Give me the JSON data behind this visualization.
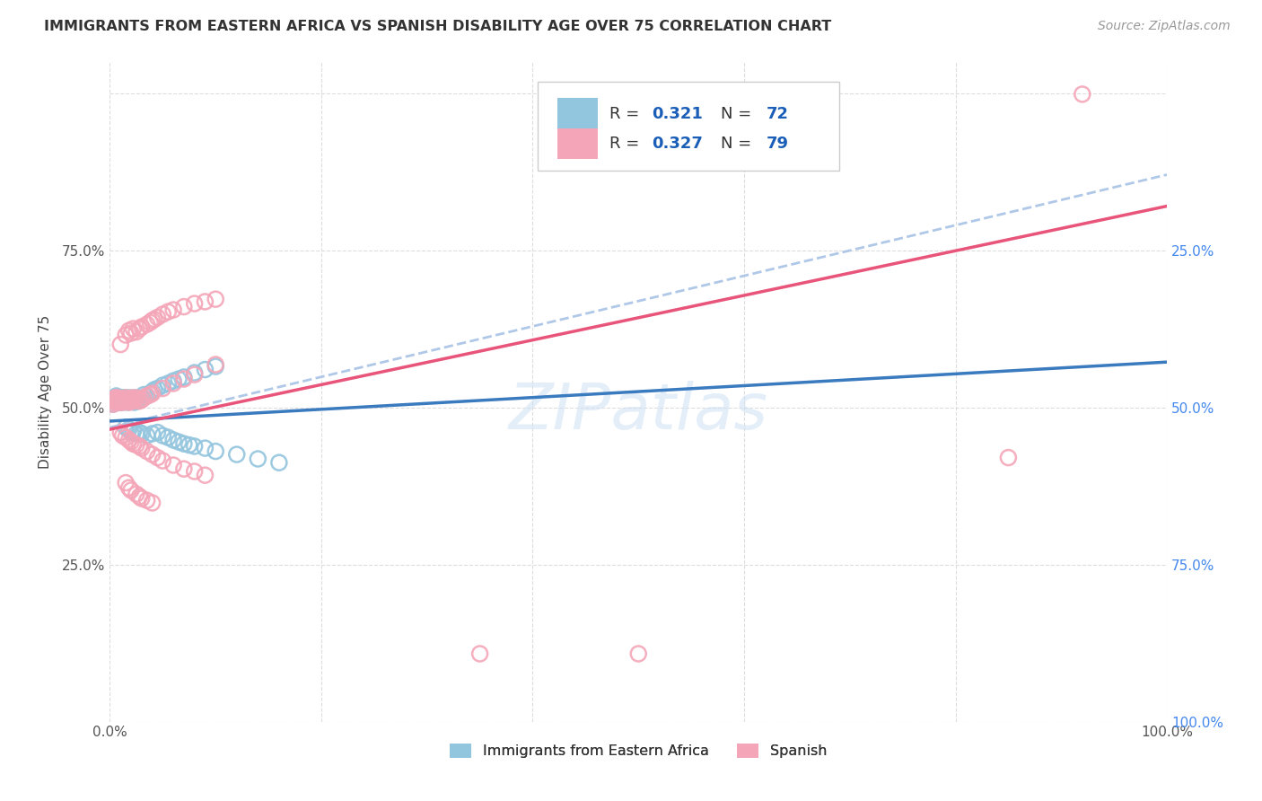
{
  "title": "IMMIGRANTS FROM EASTERN AFRICA VS SPANISH DISABILITY AGE OVER 75 CORRELATION CHART",
  "source": "Source: ZipAtlas.com",
  "ylabel": "Disability Age Over 75",
  "legend_label1": "Immigrants from Eastern Africa",
  "legend_label2": "Spanish",
  "r1": 0.321,
  "n1": 72,
  "r2": 0.327,
  "n2": 79,
  "blue_color": "#92c5de",
  "pink_color": "#f4a6b8",
  "blue_line_color": "#3a7abf",
  "pink_line_color": "#e8547a",
  "dashed_line_color": "#b0c8e8",
  "right_axis_color": "#4488ee",
  "title_color": "#333333",
  "source_color": "#999999",
  "legend_text_color": "#1a5eb8",
  "blue_scatter_x": [
    0.003,
    0.004,
    0.005,
    0.005,
    0.006,
    0.006,
    0.007,
    0.007,
    0.008,
    0.008,
    0.009,
    0.009,
    0.01,
    0.01,
    0.011,
    0.011,
    0.012,
    0.012,
    0.013,
    0.013,
    0.014,
    0.015,
    0.015,
    0.016,
    0.017,
    0.018,
    0.019,
    0.02,
    0.021,
    0.022,
    0.023,
    0.024,
    0.025,
    0.026,
    0.028,
    0.03,
    0.032,
    0.035,
    0.038,
    0.04,
    0.042,
    0.045,
    0.05,
    0.055,
    0.06,
    0.065,
    0.07,
    0.08,
    0.09,
    0.1,
    0.015,
    0.018,
    0.02,
    0.022,
    0.025,
    0.028,
    0.03,
    0.035,
    0.04,
    0.045,
    0.05,
    0.055,
    0.06,
    0.065,
    0.07,
    0.075,
    0.08,
    0.09,
    0.1,
    0.12,
    0.14,
    0.16
  ],
  "blue_scatter_y": [
    0.505,
    0.51,
    0.508,
    0.515,
    0.512,
    0.518,
    0.51,
    0.515,
    0.508,
    0.512,
    0.51,
    0.515,
    0.508,
    0.512,
    0.51,
    0.515,
    0.508,
    0.512,
    0.51,
    0.515,
    0.512,
    0.51,
    0.515,
    0.512,
    0.508,
    0.515,
    0.51,
    0.512,
    0.51,
    0.515,
    0.508,
    0.512,
    0.515,
    0.51,
    0.512,
    0.515,
    0.52,
    0.518,
    0.522,
    0.525,
    0.528,
    0.53,
    0.535,
    0.538,
    0.542,
    0.545,
    0.548,
    0.555,
    0.56,
    0.565,
    0.468,
    0.465,
    0.46,
    0.462,
    0.458,
    0.46,
    0.458,
    0.455,
    0.458,
    0.46,
    0.455,
    0.452,
    0.448,
    0.445,
    0.442,
    0.44,
    0.438,
    0.435,
    0.43,
    0.425,
    0.418,
    0.412
  ],
  "pink_scatter_x": [
    0.003,
    0.004,
    0.005,
    0.005,
    0.006,
    0.006,
    0.007,
    0.007,
    0.008,
    0.008,
    0.009,
    0.01,
    0.01,
    0.011,
    0.012,
    0.013,
    0.014,
    0.015,
    0.016,
    0.017,
    0.018,
    0.019,
    0.02,
    0.021,
    0.022,
    0.023,
    0.025,
    0.028,
    0.03,
    0.032,
    0.035,
    0.038,
    0.04,
    0.05,
    0.06,
    0.07,
    0.08,
    0.1,
    0.01,
    0.015,
    0.018,
    0.02,
    0.022,
    0.025,
    0.028,
    0.03,
    0.035,
    0.038,
    0.04,
    0.042,
    0.045,
    0.05,
    0.055,
    0.06,
    0.07,
    0.08,
    0.09,
    0.1,
    0.01,
    0.012,
    0.015,
    0.018,
    0.02,
    0.022,
    0.025,
    0.028,
    0.03,
    0.035,
    0.04,
    0.045,
    0.05,
    0.06,
    0.07,
    0.08,
    0.09,
    0.015,
    0.018,
    0.02,
    0.025,
    0.028,
    0.03,
    0.035,
    0.04,
    0.35,
    0.5,
    0.85,
    0.92
  ],
  "pink_scatter_y": [
    0.505,
    0.51,
    0.508,
    0.515,
    0.51,
    0.515,
    0.508,
    0.512,
    0.51,
    0.515,
    0.51,
    0.508,
    0.512,
    0.51,
    0.508,
    0.512,
    0.51,
    0.515,
    0.512,
    0.51,
    0.508,
    0.512,
    0.51,
    0.515,
    0.51,
    0.512,
    0.515,
    0.51,
    0.512,
    0.515,
    0.518,
    0.52,
    0.522,
    0.53,
    0.538,
    0.545,
    0.552,
    0.568,
    0.6,
    0.615,
    0.622,
    0.618,
    0.625,
    0.62,
    0.625,
    0.628,
    0.632,
    0.635,
    0.638,
    0.64,
    0.643,
    0.648,
    0.652,
    0.655,
    0.66,
    0.665,
    0.668,
    0.672,
    0.46,
    0.455,
    0.452,
    0.448,
    0.445,
    0.442,
    0.44,
    0.438,
    0.435,
    0.43,
    0.425,
    0.42,
    0.415,
    0.408,
    0.402,
    0.398,
    0.392,
    0.38,
    0.372,
    0.368,
    0.362,
    0.358,
    0.355,
    0.352,
    0.348,
    0.108,
    0.108,
    0.42,
    0.998
  ],
  "line_blue_x0": 0.0,
  "line_blue_y0": 0.478,
  "line_blue_x1": 1.0,
  "line_blue_y1": 0.572,
  "line_pink_x0": 0.0,
  "line_pink_y0": 0.465,
  "line_pink_x1": 1.0,
  "line_pink_y1": 0.82,
  "line_dash_x0": 0.0,
  "line_dash_y0": 0.468,
  "line_dash_x1": 1.0,
  "line_dash_y1": 0.87,
  "xlim": [
    0.0,
    1.0
  ],
  "ylim": [
    0.0,
    1.05
  ],
  "x_ticks": [
    0.0,
    0.2,
    0.4,
    0.6,
    0.8,
    1.0
  ],
  "y_ticks": [
    0.0,
    0.25,
    0.5,
    0.75,
    1.0
  ],
  "x_tick_labels": [
    "0.0%",
    "",
    "",
    "",
    "",
    "100.0%"
  ],
  "y_tick_labels_left": [
    "",
    "25.0%",
    "50.0%",
    "75.0%",
    ""
  ],
  "y_tick_labels_right": [
    "100.0%",
    "75.0%",
    "50.0%",
    "25.0%",
    ""
  ],
  "watermark_text": "ZIPatlas",
  "watermark_color": "#cce0f5"
}
